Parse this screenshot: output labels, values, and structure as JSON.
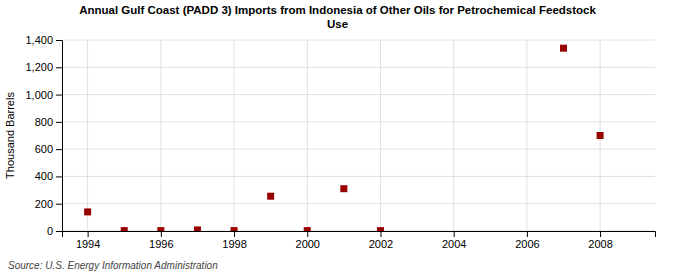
{
  "chart_data": {
    "type": "scatter",
    "title": "Annual Gulf Coast (PADD 3) Imports from Indonesia of Other Oils for Petrochemical Feedstock\nUse",
    "ylabel": "Thousand Barrels",
    "annotations": [
      "Source: U.S. Energy Information Administration"
    ],
    "x": [
      1994,
      1995,
      1996,
      1997,
      1998,
      1999,
      2000,
      2001,
      2002,
      2007,
      2008
    ],
    "values": [
      140,
      3,
      3,
      8,
      3,
      255,
      3,
      310,
      3,
      1340,
      700
    ],
    "color": "#990000",
    "marker": "square",
    "xlim": [
      1993.3,
      2009.5
    ],
    "ylim": [
      0,
      1400
    ],
    "xticks": [
      1994,
      1996,
      1998,
      2000,
      2002,
      2004,
      2006,
      2008
    ],
    "yticks": [
      0,
      200,
      400,
      600,
      800,
      {
        "value": 1000,
        "label": "1,000"
      },
      {
        "value": 1200,
        "label": "1,200"
      },
      {
        "value": 1400,
        "label": "1,400"
      }
    ],
    "grid": true
  }
}
